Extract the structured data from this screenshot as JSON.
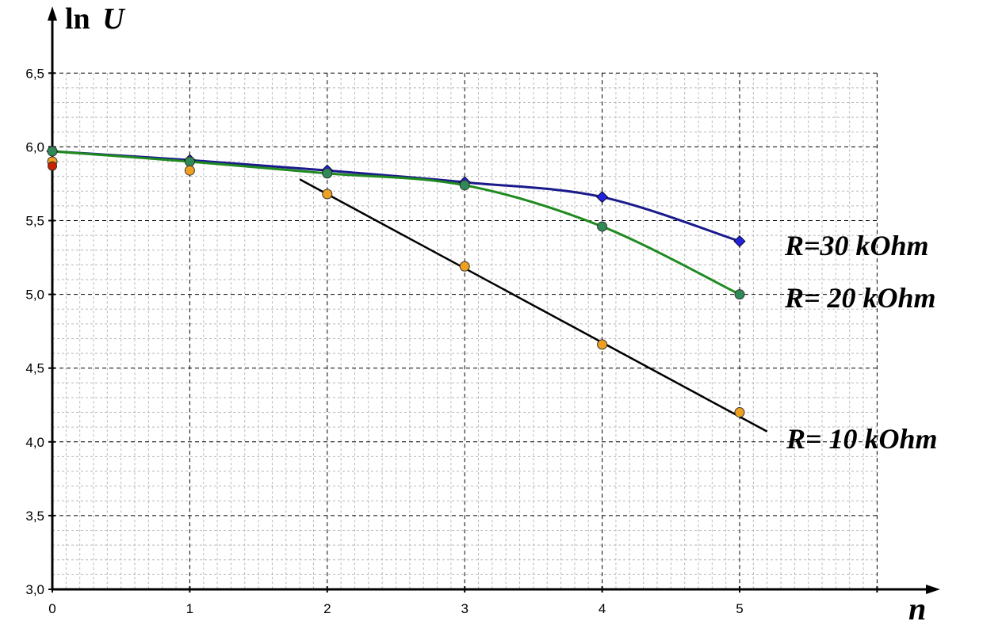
{
  "chart_data": {
    "type": "line",
    "xlabel": "n",
    "ylabel_prefix": "ln",
    "ylabel_var": "U",
    "xlim": [
      0,
      6
    ],
    "ylim": [
      3.0,
      6.5
    ],
    "grid": true,
    "x_ticks": [
      "0",
      "1",
      "2",
      "3",
      "4",
      "5"
    ],
    "y_ticks": [
      "3,0",
      "3,5",
      "4,0",
      "4,5",
      "5,0",
      "5,5",
      "6,0",
      "6,5"
    ],
    "y_tick_values": [
      3.0,
      3.5,
      4.0,
      4.5,
      5.0,
      5.5,
      6.0,
      6.5
    ],
    "series": [
      {
        "name": "R=30 kOhm",
        "line_color": "#1a1a8c",
        "marker_color": "#2222dd",
        "marker": "diamond",
        "x": [
          0,
          1,
          2,
          3,
          4,
          5
        ],
        "y": [
          5.97,
          5.91,
          5.84,
          5.76,
          5.66,
          5.36
        ]
      },
      {
        "name": "R= 20 kOhm",
        "line_color": "#1f8a1f",
        "marker_color": "#2e8b57",
        "marker": "circle",
        "x": [
          0,
          1,
          2,
          3,
          4,
          5
        ],
        "y": [
          5.97,
          5.9,
          5.82,
          5.74,
          5.46,
          5.0
        ]
      },
      {
        "name": "R= 10 kOhm",
        "line_color": "#000000",
        "marker_color": "#f0a020",
        "marker": "circle",
        "x": [
          0,
          1,
          2,
          3,
          4,
          5
        ],
        "y": [
          5.9,
          5.84,
          5.68,
          5.19,
          4.66,
          4.2
        ],
        "fit_line": {
          "x": [
            1.8,
            5.2
          ],
          "y": [
            5.78,
            4.07
          ]
        }
      }
    ],
    "extra_points": [
      {
        "x": 0,
        "y": 5.87,
        "color": "#cc2200"
      }
    ]
  }
}
